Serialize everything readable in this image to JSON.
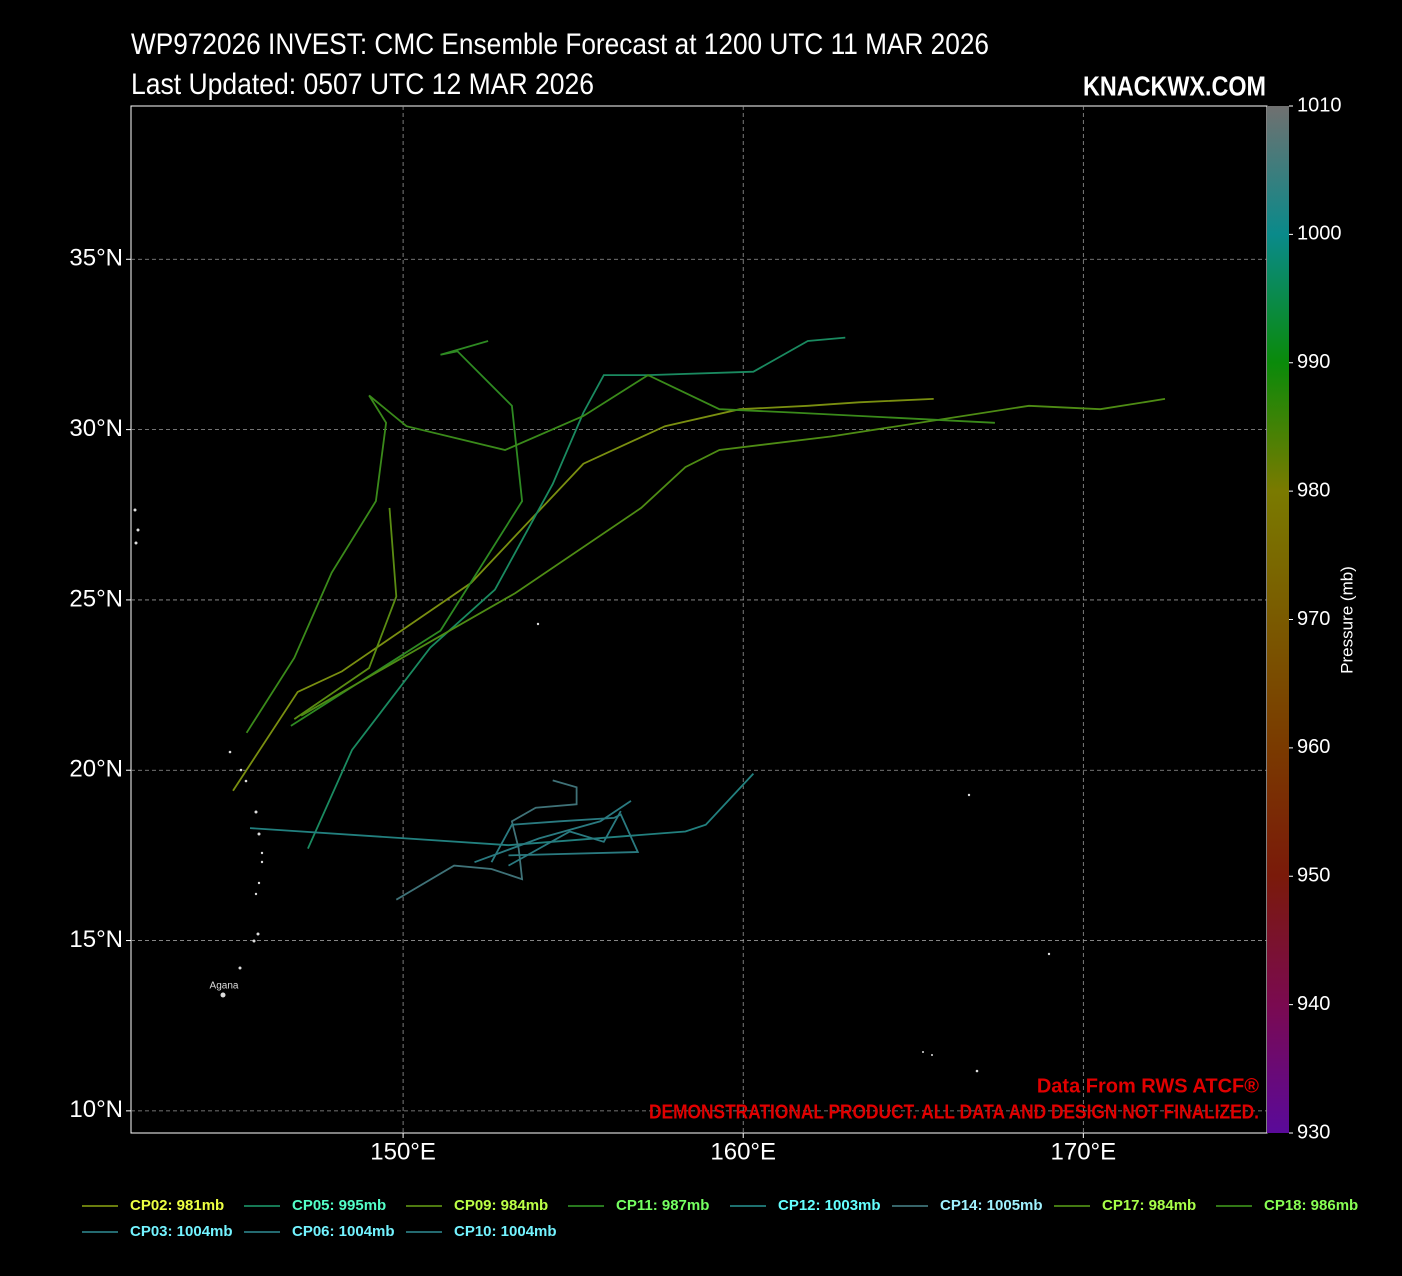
{
  "chart_data": {
    "type": "line",
    "title": "WP972026 INVEST: CMC Ensemble Forecast at 1200 UTC 11 MAR 2026",
    "subtitle": "Last Updated: 0507 UTC 12 MAR 2026",
    "brand": "KNACKWX.COM",
    "source": "Data From RWS ATCF®",
    "disclaimer": "DEMONSTRATIONAL PRODUCT. ALL DATA AND DESIGN NOT FINALIZED.",
    "place_label": "Agana",
    "grid": true,
    "xlim": [
      142,
      175.4
    ],
    "ylim": [
      9.35,
      39.5
    ],
    "xticks": [
      {
        "value": 150,
        "label": "150°E"
      },
      {
        "value": 160,
        "label": "160°E"
      },
      {
        "value": 170,
        "label": "170°E"
      }
    ],
    "yticks": [
      {
        "value": 10,
        "label": "10°N"
      },
      {
        "value": 15,
        "label": "15°N"
      },
      {
        "value": 20,
        "label": "20°N"
      },
      {
        "value": 25,
        "label": "25°N"
      },
      {
        "value": 30,
        "label": "30°N"
      },
      {
        "value": 35,
        "label": "35°N"
      }
    ],
    "colorbar": {
      "label": "Pressure (mb)",
      "lim": [
        930,
        1010
      ],
      "ticks": [
        930,
        940,
        950,
        960,
        970,
        980,
        990,
        1000,
        1010
      ],
      "colors": [
        "#5a0a9a",
        "#7a0a50",
        "#7a1a0a",
        "#7a3a00",
        "#7a5a00",
        "#7a7a00",
        "#0a8a0a",
        "#0a8a8a",
        "#707070"
      ]
    },
    "series": [
      {
        "name": "CP02: 981mb",
        "color": "#7a8f10",
        "x": [
          145.0,
          146.9,
          148.2,
          152.0,
          155.3,
          157.7,
          159.9,
          161.9,
          163.4,
          165.6
        ],
        "values": [
          19.4,
          22.3,
          22.9,
          25.5,
          29.0,
          30.1,
          30.6,
          30.7,
          30.8,
          30.9
        ]
      },
      {
        "name": "CP05: 995mb",
        "color": "#1a8a60",
        "x": [
          147.2,
          148.5,
          150.8,
          152.7,
          154.4,
          155.3,
          155.9,
          157.2,
          160.3,
          161.9,
          163.0
        ],
        "values": [
          17.7,
          20.6,
          23.6,
          25.3,
          28.4,
          30.5,
          31.6,
          31.6,
          31.7,
          32.6,
          32.7
        ]
      },
      {
        "name": "CP09: 984mb",
        "color": "#5a8c12",
        "x": [
          146.8,
          149.0,
          149.8,
          149.6
        ],
        "values": [
          21.5,
          23.0,
          25.1,
          27.7
        ]
      },
      {
        "name": "CP11: 987mb",
        "color": "#2e8a22",
        "x": [
          146.7,
          151.1,
          153.5,
          153.2,
          151.6,
          151.1,
          152.5
        ],
        "values": [
          21.3,
          24.1,
          27.9,
          30.7,
          32.3,
          32.2,
          32.6
        ]
      },
      {
        "name": "CP12: 1003mb",
        "color": "#22807f",
        "x": [
          145.5,
          153.1,
          158.3,
          158.9,
          160.3
        ],
        "values": [
          18.3,
          17.8,
          18.2,
          18.4,
          19.9
        ]
      },
      {
        "name": "CP14: 1005mb",
        "color": "#3f7278",
        "x": [
          149.8,
          151.5,
          152.6,
          153.5,
          153.4,
          153.2,
          153.9,
          155.1,
          155.1,
          154.4
        ],
        "values": [
          16.2,
          17.2,
          17.1,
          16.8,
          17.7,
          18.5,
          18.9,
          19.0,
          19.5,
          19.7
        ]
      },
      {
        "name": "CP17: 984mb",
        "color": "#4e8c14",
        "x": [
          147.0,
          153.3,
          157.0,
          158.3,
          159.3,
          162.6,
          168.4,
          170.5,
          172.4
        ],
        "values": [
          21.6,
          25.2,
          27.7,
          28.9,
          29.4,
          29.8,
          30.7,
          30.6,
          30.9
        ]
      },
      {
        "name": "CP18: 986mb",
        "color": "#3a8a1a",
        "x": [
          145.4,
          146.8,
          147.9,
          149.2,
          149.5,
          149.0,
          150.1,
          153.0,
          155.3,
          157.2,
          159.3,
          161.5,
          167.4
        ],
        "values": [
          21.1,
          23.3,
          25.8,
          27.9,
          30.2,
          31.0,
          30.1,
          29.4,
          30.4,
          31.6,
          30.6,
          30.5,
          30.2
        ]
      },
      {
        "name": "CP03: 1004mb",
        "color": "#2a7a80",
        "x": [
          152.1,
          154.0,
          155.8,
          156.7
        ],
        "values": [
          17.3,
          18.0,
          18.5,
          19.1
        ]
      },
      {
        "name": "CP06: 1004mb",
        "color": "#2a7a80",
        "x": [
          152.6,
          153.2,
          154.6,
          156.2,
          156.4,
          156.9,
          153.1
        ],
        "values": [
          17.3,
          18.4,
          18.5,
          18.6,
          18.7,
          17.6,
          17.5
        ]
      },
      {
        "name": "CP10: 1004mb",
        "color": "#2a7a80",
        "x": [
          153.1,
          154.9,
          155.9,
          156.4
        ],
        "values": [
          17.2,
          18.2,
          17.9,
          18.8
        ]
      }
    ]
  }
}
